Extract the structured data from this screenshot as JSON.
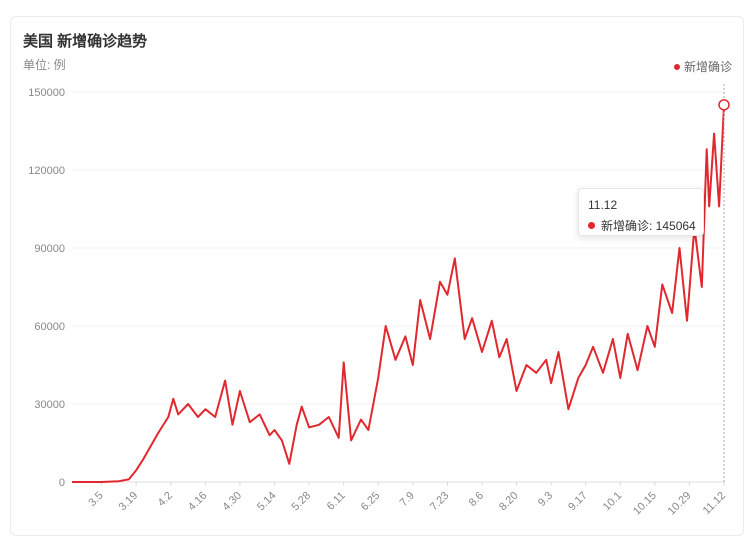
{
  "header": {
    "title": "美国 新增确诊趋势",
    "unit": "单位: 例"
  },
  "legend": {
    "label": "新增确诊",
    "color": "#e0282e"
  },
  "tooltip": {
    "date": "11.12",
    "label": "新增确诊: 145064"
  },
  "chart_data": {
    "type": "line",
    "title": "美国 新增确诊趋势",
    "ylabel": "单位: 例",
    "ylim": [
      0,
      150000
    ],
    "y_ticks": [
      "0",
      "30000",
      "60000",
      "90000",
      "120000",
      "150000"
    ],
    "x_ticks": [
      "3.5",
      "3.19",
      "4.2",
      "4.16",
      "4.30",
      "5.14",
      "5.28",
      "6.11",
      "6.25",
      "7.9",
      "7.23",
      "8.6",
      "8.20",
      "9.3",
      "9.17",
      "10.1",
      "10.15",
      "10.29",
      "11.12"
    ],
    "grid": true,
    "legend_position": "top-right",
    "series": [
      {
        "name": "新增确诊",
        "color": "#e0282e",
        "points": [
          [
            "2.22",
            0
          ],
          [
            "3.5",
            0
          ],
          [
            "3.12",
            300
          ],
          [
            "3.16",
            1000
          ],
          [
            "3.19",
            4500
          ],
          [
            "3.22",
            9000
          ],
          [
            "3.25",
            14000
          ],
          [
            "3.28",
            19000
          ],
          [
            "4.1",
            25000
          ],
          [
            "4.3",
            32000
          ],
          [
            "4.5",
            26000
          ],
          [
            "4.9",
            30000
          ],
          [
            "4.13",
            25000
          ],
          [
            "4.16",
            28000
          ],
          [
            "4.20",
            25000
          ],
          [
            "4.24",
            39000
          ],
          [
            "4.27",
            22000
          ],
          [
            "4.30",
            35000
          ],
          [
            "5.4",
            23000
          ],
          [
            "5.8",
            26000
          ],
          [
            "5.12",
            18000
          ],
          [
            "5.14",
            20000
          ],
          [
            "5.17",
            16000
          ],
          [
            "5.20",
            7000
          ],
          [
            "5.23",
            22000
          ],
          [
            "5.25",
            29000
          ],
          [
            "5.28",
            21000
          ],
          [
            "6.1",
            22000
          ],
          [
            "6.5",
            25000
          ],
          [
            "6.9",
            17000
          ],
          [
            "6.11",
            46000
          ],
          [
            "6.14",
            16000
          ],
          [
            "6.18",
            24000
          ],
          [
            "6.21",
            20000
          ],
          [
            "6.25",
            40000
          ],
          [
            "6.28",
            60000
          ],
          [
            "7.2",
            47000
          ],
          [
            "7.6",
            56000
          ],
          [
            "7.9",
            45000
          ],
          [
            "7.12",
            70000
          ],
          [
            "7.16",
            55000
          ],
          [
            "7.20",
            77000
          ],
          [
            "7.23",
            72000
          ],
          [
            "7.26",
            86000
          ],
          [
            "7.30",
            55000
          ],
          [
            "8.2",
            63000
          ],
          [
            "8.6",
            50000
          ],
          [
            "8.10",
            62000
          ],
          [
            "8.13",
            48000
          ],
          [
            "8.16",
            55000
          ],
          [
            "8.20",
            35000
          ],
          [
            "8.24",
            45000
          ],
          [
            "8.28",
            42000
          ],
          [
            "9.1",
            47000
          ],
          [
            "9.3",
            38000
          ],
          [
            "9.6",
            50000
          ],
          [
            "9.10",
            28000
          ],
          [
            "9.14",
            40000
          ],
          [
            "9.17",
            45000
          ],
          [
            "9.20",
            52000
          ],
          [
            "9.24",
            42000
          ],
          [
            "9.28",
            55000
          ],
          [
            "10.1",
            40000
          ],
          [
            "10.4",
            57000
          ],
          [
            "10.8",
            43000
          ],
          [
            "10.12",
            60000
          ],
          [
            "10.15",
            52000
          ],
          [
            "10.18",
            76000
          ],
          [
            "10.22",
            65000
          ],
          [
            "10.25",
            90000
          ],
          [
            "10.28",
            62000
          ],
          [
            "10.31",
            98000
          ],
          [
            "11.3",
            75000
          ],
          [
            "11.5",
            128000
          ],
          [
            "11.6",
            106000
          ],
          [
            "11.8",
            134000
          ],
          [
            "11.10",
            106000
          ],
          [
            "11.12",
            145064
          ]
        ]
      }
    ]
  }
}
